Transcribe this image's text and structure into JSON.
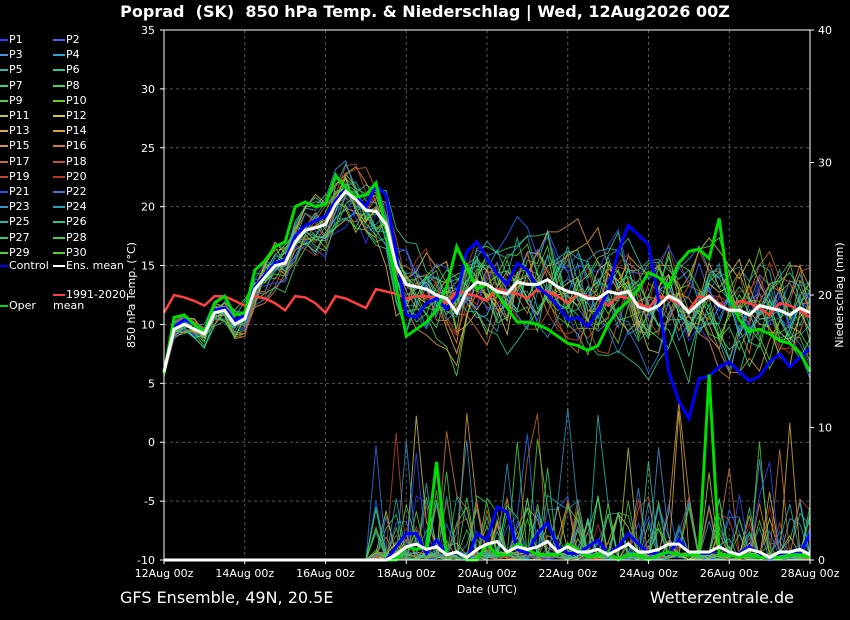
{
  "title": "Poprad  (SK)  850 hPa Temp. & Niederschlag | Wed, 12Aug2026 00Z",
  "footer_left": "GFS Ensemble, 49N, 20.5E",
  "footer_right": "Wetterzentrale.de",
  "chart_data": {
    "type": "line",
    "xlabel": "Date (UTC)",
    "ylabel": "850 hPa Temp. (°C)",
    "y2label": "Niederschlag (mm)",
    "ylim": [
      -10,
      35
    ],
    "y2lim": [
      0,
      40
    ],
    "yticks": [
      -10,
      -5,
      0,
      5,
      10,
      15,
      20,
      25,
      30,
      35
    ],
    "y2ticks": [
      0,
      10,
      20,
      30,
      40
    ],
    "xticks": [
      "12Aug 00z",
      "14Aug 00z",
      "16Aug 00z",
      "18Aug 00z",
      "20Aug 00z",
      "22Aug 00z",
      "24Aug 00z",
      "26Aug 00z",
      "28Aug 00z"
    ],
    "grid": true,
    "legend_placement": "left",
    "time_step_hours": 6,
    "legend": [
      {
        "label": "P1",
        "color": "#3a3aff"
      },
      {
        "label": "P2",
        "color": "#2f6bff"
      },
      {
        "label": "P3",
        "color": "#4a90d9"
      },
      {
        "label": "P4",
        "color": "#2aa6c8"
      },
      {
        "label": "P5",
        "color": "#2fb7b0"
      },
      {
        "label": "P6",
        "color": "#2fc890"
      },
      {
        "label": "P7",
        "color": "#3bd27a"
      },
      {
        "label": "P8",
        "color": "#46d45a"
      },
      {
        "label": "P9",
        "color": "#52cf3c"
      },
      {
        "label": "P10",
        "color": "#6ac832"
      },
      {
        "label": "P11",
        "color": "#b8c842"
      },
      {
        "label": "P12",
        "color": "#d2c650"
      },
      {
        "label": "P13",
        "color": "#d8b048"
      },
      {
        "label": "P14",
        "color": "#d6a040"
      },
      {
        "label": "P15",
        "color": "#d8943c"
      },
      {
        "label": "P16",
        "color": "#d07c34"
      },
      {
        "label": "P17",
        "color": "#c86a30"
      },
      {
        "label": "P18",
        "color": "#c45a2c"
      },
      {
        "label": "P19",
        "color": "#c04a2a"
      },
      {
        "label": "P20",
        "color": "#b83a26"
      },
      {
        "label": "P21",
        "color": "#2e4fff"
      },
      {
        "label": "P22",
        "color": "#2f7bd8"
      },
      {
        "label": "P23",
        "color": "#3596c8"
      },
      {
        "label": "P24",
        "color": "#2aa2b4"
      },
      {
        "label": "P25",
        "color": "#2bb8a2"
      },
      {
        "label": "P26",
        "color": "#2ec88a"
      },
      {
        "label": "P27",
        "color": "#36cf6e"
      },
      {
        "label": "P28",
        "color": "#3ed452"
      },
      {
        "label": "P29",
        "color": "#4cd23a"
      },
      {
        "label": "P30",
        "color": "#58cc2c"
      },
      {
        "label": "Control",
        "color": "#0000ff"
      },
      {
        "label": "Ens. mean",
        "color": "#ffffff"
      },
      {
        "label": "Oper",
        "color": "#00dd00"
      },
      {
        "label": "1991-2020\nmean",
        "color": "#ff4040"
      }
    ],
    "series": [
      {
        "name": "Ens. mean",
        "color": "#ffffff",
        "values": [
          6,
          9.6,
          10,
          9.6,
          9.2,
          11,
          11.2,
          10,
          10.5,
          13,
          14,
          15,
          15.2,
          17,
          18,
          18.2,
          18.5,
          20.2,
          21.3,
          20.6,
          19.7,
          19.6,
          18.5,
          15,
          13.4,
          13.2,
          13,
          12.5,
          12.2,
          11,
          12.8,
          13.6,
          13.4,
          12.8,
          12.6,
          13.6,
          13.4,
          13.4,
          13.8,
          13.2,
          12.8,
          12.6,
          12.2,
          12.2,
          12.8,
          12.6,
          12.8,
          11.5,
          11.2,
          11.6,
          12.4,
          12,
          11,
          11.8,
          12.4,
          11.6,
          11.2,
          11.2,
          10.8,
          11.6,
          11.4,
          11.2,
          10.8,
          11.4,
          11
        ]
      },
      {
        "name": "Control",
        "color": "#0000ff",
        "values": [
          6,
          9.8,
          10.4,
          10,
          9.4,
          11.2,
          11.4,
          10.3,
          10.8,
          13.2,
          14.2,
          15.2,
          15.5,
          17.5,
          18.4,
          18.8,
          19.2,
          20.5,
          21.5,
          20.8,
          20,
          21.8,
          21,
          16,
          10.8,
          10.6,
          11.8,
          12.2,
          11.3,
          12.4,
          16.2,
          17,
          15.6,
          14.3,
          13.4,
          15.2,
          14.6,
          13.2,
          12.5,
          11.6,
          10.4,
          10.6,
          9.8,
          11.2,
          12.8,
          16.2,
          18.4,
          17.6,
          16.8,
          12,
          6,
          3.5,
          2,
          5.4,
          5.6,
          6.4,
          6.8,
          6,
          5.2,
          5.6,
          6.8,
          7.5,
          6.4,
          7.2,
          8
        ]
      },
      {
        "name": "Oper",
        "color": "#00dd00",
        "values": [
          5.8,
          10.6,
          10.8,
          10,
          9.4,
          11.8,
          12.4,
          10.8,
          11,
          14.6,
          15.4,
          16.6,
          17,
          20,
          20.4,
          20,
          20.2,
          22.6,
          21.6,
          20.8,
          21,
          22,
          18.2,
          13.2,
          9,
          9.6,
          10.2,
          11.2,
          13.2,
          16.6,
          14.8,
          13,
          13.4,
          12.6,
          11.4,
          10.2,
          10.2,
          10,
          9.6,
          9,
          8.4,
          8.2,
          7.8,
          8.2,
          10,
          11.2,
          12,
          13,
          14.4,
          14,
          13.2,
          15.2,
          16.2,
          16.4,
          15.6,
          19,
          12.4,
          10.4,
          9.4,
          9.6,
          9.2,
          8.6,
          8.4,
          7.6,
          6
        ]
      },
      {
        "name": "1991-2020 mean",
        "color": "#ff4040",
        "values": [
          11,
          12.5,
          12.3,
          12,
          11.6,
          12.4,
          12.4,
          12,
          11.6,
          12.4,
          12.2,
          11.8,
          11.2,
          12.4,
          12.3,
          11.8,
          11,
          12.4,
          12.2,
          11.8,
          11.4,
          13,
          12.8,
          12.6,
          12.2,
          12.4,
          12.4,
          12.2,
          11.8,
          12.8,
          12.6,
          12.4,
          12,
          13,
          12.8,
          12.6,
          12.2,
          13,
          12.8,
          12.4,
          11.8,
          12.6,
          12.4,
          12.2,
          11.6,
          12.4,
          12.2,
          11.8,
          11.4,
          12.4,
          12.2,
          11.8,
          11.2,
          12.4,
          12.2,
          11.8,
          11.2,
          12,
          11.8,
          11.4,
          10.8,
          11.8,
          11.6,
          11.2,
          10.6
        ]
      }
    ],
    "precip_series": [
      {
        "name": "Ens. mean",
        "color": "#ffffff",
        "values": [
          0,
          0,
          0,
          0,
          0,
          0,
          0,
          0,
          0,
          0,
          0,
          0,
          0,
          0,
          0,
          0,
          0,
          0,
          0,
          0,
          0,
          0,
          0,
          0.4,
          1,
          1.2,
          0.8,
          1,
          0.4,
          0.6,
          0.2,
          0.8,
          1.2,
          1.4,
          0.6,
          1,
          0.8,
          1,
          1.4,
          0.6,
          1,
          0.6,
          0.6,
          0.8,
          0.4,
          0.8,
          1.2,
          0.6,
          0.6,
          0.8,
          1.2,
          1.2,
          0.6,
          0.6,
          0.6,
          1,
          0.6,
          0.4,
          0.8,
          0.6,
          0.2,
          0.6,
          0.6,
          0.8,
          0.4
        ]
      },
      {
        "name": "Control",
        "color": "#0000ff",
        "values": [
          0,
          0,
          0,
          0,
          0,
          0,
          0,
          0,
          0,
          0,
          0,
          0,
          0,
          0,
          0,
          0,
          0,
          0,
          0,
          0,
          0,
          0,
          0,
          1,
          2,
          2,
          0.5,
          1.5,
          0.5,
          0.5,
          0,
          2,
          1.5,
          4,
          3.6,
          0.8,
          0.5,
          2,
          2.8,
          1,
          0.5,
          0.5,
          1,
          1.5,
          0.5,
          1,
          2,
          1.2,
          0.5,
          0.5,
          0.5,
          1.5,
          0.5,
          0.5,
          0.5,
          1,
          0.5,
          0.5,
          1,
          0.5,
          0,
          0.5,
          0.5,
          0.5,
          2
        ]
      },
      {
        "name": "Oper",
        "color": "#00dd00",
        "values": [
          0,
          0,
          0,
          0,
          0,
          0,
          0,
          0,
          0,
          0,
          0,
          0,
          0,
          0,
          0,
          0,
          0,
          0,
          0,
          0,
          0,
          0,
          0,
          0,
          1,
          0.8,
          1,
          7.4,
          0.4,
          0.6,
          0,
          0,
          1.2,
          0.4,
          0.4,
          1.2,
          0.8,
          0.4,
          0.4,
          0.4,
          1.2,
          0.8,
          0.2,
          0.4,
          0.6,
          0,
          0.4,
          0.4,
          0,
          0.4,
          0.6,
          0.4,
          0.4,
          0.4,
          14,
          0.4,
          0.4,
          0.2,
          0.4,
          0.2,
          0.2,
          0.2,
          0.4,
          0.4,
          0.2
        ]
      }
    ]
  }
}
